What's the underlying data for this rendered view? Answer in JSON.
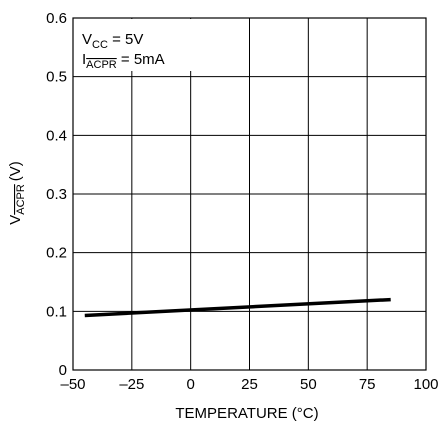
{
  "chart_data": {
    "type": "line",
    "title": "",
    "xlabel": "TEMPERATURE (°C)",
    "ylabel": {
      "main": "V",
      "sub": "ACPR",
      "unit": "(V)"
    },
    "xlim": [
      -50,
      100
    ],
    "ylim": [
      0,
      0.6
    ],
    "xticks": [
      -50,
      -25,
      0,
      25,
      50,
      75,
      100
    ],
    "xtick_labels": [
      "–50",
      "–25",
      "0",
      "25",
      "50",
      "75",
      "100"
    ],
    "yticks": [
      0,
      0.1,
      0.2,
      0.3,
      0.4,
      0.5,
      0.6
    ],
    "ytick_labels": [
      "0",
      "0.1",
      "0.2",
      "0.3",
      "0.4",
      "0.5",
      "0.6"
    ],
    "grid": true,
    "series": [
      {
        "x": [
          -45,
          85
        ],
        "y": [
          0.093,
          0.12
        ],
        "color": "#000000"
      }
    ],
    "annotations": [
      {
        "main": "V",
        "sub": "CC",
        "rest": " = 5V"
      },
      {
        "main": "I",
        "sub": "ACPR",
        "rest": " = 5mA"
      }
    ]
  }
}
